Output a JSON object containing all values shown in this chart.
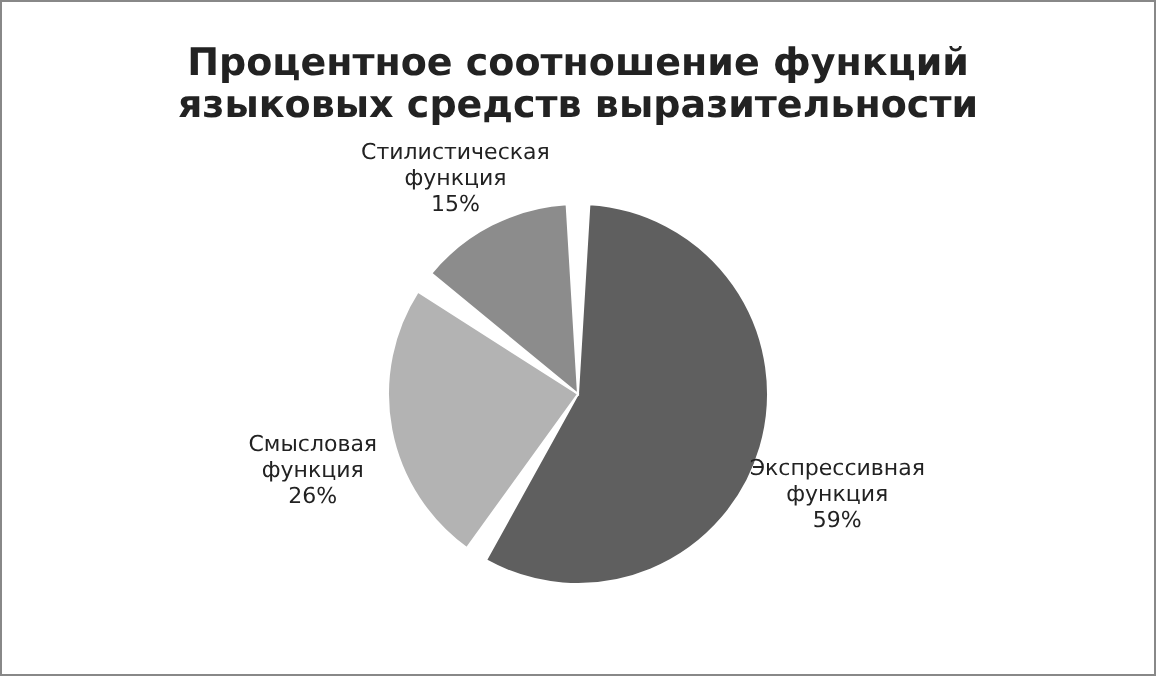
{
  "chart_data": {
    "type": "pie",
    "title": "Процентное соотношение функций языковых средств выразительности",
    "categories": [
      "Экспрессивная функция",
      "Смысловая функция",
      "Стилистическая функция"
    ],
    "values": [
      59,
      26,
      15
    ],
    "colors": [
      "#5f5f5f",
      "#b3b3b3",
      "#8c8c8c"
    ],
    "value_labels": [
      "59%",
      "26%",
      "15%"
    ]
  }
}
